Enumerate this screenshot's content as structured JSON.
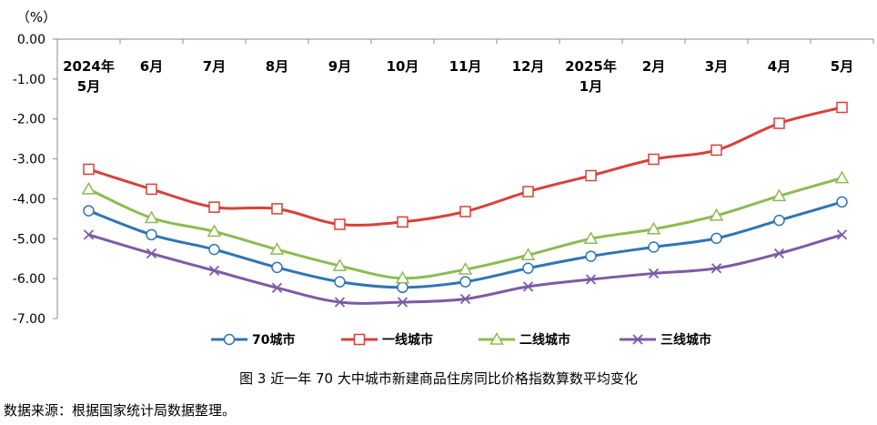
{
  "chart_data": {
    "type": "line",
    "unit_label": "（%）",
    "ylim": [
      -7.0,
      0.0
    ],
    "yticks": [
      "0.00",
      "-1.00",
      "-2.00",
      "-3.00",
      "-4.00",
      "-5.00",
      "-6.00",
      "-7.00"
    ],
    "categories": [
      [
        "2024年",
        "5月"
      ],
      [
        "6月"
      ],
      [
        "7月"
      ],
      [
        "8月"
      ],
      [
        "9月"
      ],
      [
        "10月"
      ],
      [
        "11月"
      ],
      [
        "12月"
      ],
      [
        "2025年",
        "1月"
      ],
      [
        "2月"
      ],
      [
        "3月"
      ],
      [
        "4月"
      ],
      [
        "5月"
      ]
    ],
    "series": [
      {
        "name": "70城市",
        "color": "#2e75b6",
        "marker": "circle",
        "values": [
          -4.3,
          -4.9,
          -5.27,
          -5.72,
          -6.08,
          -6.22,
          -6.08,
          -5.74,
          -5.44,
          -5.21,
          -4.99,
          -4.54,
          -4.08
        ]
      },
      {
        "name": "一线城市",
        "color": "#d9403a",
        "marker": "square",
        "values": [
          -3.26,
          -3.76,
          -4.21,
          -4.25,
          -4.64,
          -4.58,
          -4.32,
          -3.82,
          -3.42,
          -3.01,
          -2.78,
          -2.11,
          -1.71
        ]
      },
      {
        "name": "二线城市",
        "color": "#8dbb52",
        "marker": "triangle",
        "values": [
          -3.76,
          -4.48,
          -4.82,
          -5.27,
          -5.68,
          -5.99,
          -5.77,
          -5.41,
          -5.0,
          -4.76,
          -4.42,
          -3.93,
          -3.48
        ]
      },
      {
        "name": "三线城市",
        "color": "#7d5ba6",
        "marker": "x",
        "values": [
          -4.9,
          -5.37,
          -5.8,
          -6.23,
          -6.59,
          -6.59,
          -6.51,
          -6.2,
          -6.02,
          -5.87,
          -5.74,
          -5.37,
          -4.9
        ]
      }
    ]
  },
  "caption": "图 3  近一年 70 大中城市新建商品住房同比价格指数算数平均变化",
  "source": "数据来源：根据国家统计局数据整理。"
}
